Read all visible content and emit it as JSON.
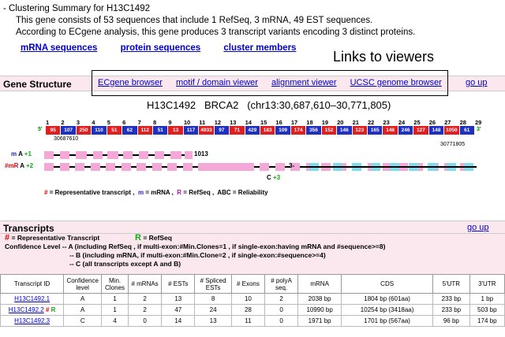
{
  "summary": {
    "title": "- Clustering Summary for H13C1492",
    "line1": "This gene consists of 53 sequences that include 1 RefSeq, 3 mRNA, 49 EST sequences.",
    "line2": "According to ECgene analysis, this gene produces 3 transcript variants encoding 3 distinct proteins."
  },
  "links": [
    "mRNA sequences",
    "protein sequences",
    "cluster members"
  ],
  "viewer_note": "Links to viewers",
  "gene_structure": {
    "section_title": "Gene Structure",
    "viewers": [
      "ECgene browser",
      "motif / domain viewer",
      "alignment viewer",
      "UCSC genome browser"
    ],
    "go_up": "go up",
    "gene_id": "H13C1492",
    "gene_symbol": "BRCA2",
    "location": "(chr13:30,687,610–30,771,805)",
    "prime5": "5'",
    "prime3": "3'",
    "coord_left": "30687610",
    "coord_right": "30771805",
    "exon_numbers": [
      "1",
      "2",
      "3",
      "4",
      "5",
      "6",
      "7",
      "8",
      "9",
      "10",
      "11",
      "12",
      "13",
      "14",
      "15",
      "16",
      "17",
      "18",
      "19",
      "20",
      "21",
      "22",
      "23",
      "24",
      "25",
      "26",
      "27",
      "28",
      "29"
    ],
    "exon_labels": [
      "95",
      "107",
      "250",
      "110",
      "51",
      "62",
      "112",
      "51",
      "13",
      "117",
      "4933",
      "97",
      "71",
      "429",
      "183",
      "109",
      "174",
      "356",
      "152",
      "146",
      "123",
      "165",
      "148",
      "246",
      "127",
      "148",
      "1050",
      "61"
    ],
    "tracks": [
      {
        "prefix": "m",
        "label": "A",
        "plus": "+1",
        "note": "1013"
      },
      {
        "prefix": "#mR",
        "label": "A",
        "plus": "+2",
        "note": ""
      },
      {
        "prefix": "",
        "label": "C",
        "plus": "+3",
        "note": "3-"
      }
    ],
    "legend": {
      "rep_mark": "#",
      "rep_text": "= Representative transcript ,",
      "m_mark": "m",
      "m_text": "= mRNA ,",
      "r_mark": "R",
      "r_text": "= RefSeq ,",
      "abc_text": "ABC = Reliability"
    }
  },
  "transcripts": {
    "section_title": "Transcripts",
    "go_up": "go up",
    "rep_mark": "#",
    "rep_text": "= Representative Transcript",
    "refseq_mark": "R",
    "refseq_text": "= RefSeq",
    "conf_a": "Confidence Level -- A (including RefSeq , if multi-exon:#Min.Clones=1 , if single-exon:having mRNA and #sequence>=8)",
    "conf_b": "-- B (including mRNA, if multi-exon:#Min.Clone=2 , if single-exon:#sequence>=4)",
    "conf_c": "-- C (all transcripts except A and B)",
    "columns": [
      "Transcript ID",
      "Confidence level",
      "Min. Clones",
      "# mRNAs",
      "# ESTs",
      "# Spliced ESTs",
      "# Exons",
      "# polyA seq.",
      "mRNA",
      "CDS",
      "5'UTR",
      "3'UTR"
    ],
    "rows": [
      {
        "id": "H13C1492.1",
        "marks": "",
        "conf": "A",
        "min": "1",
        "mrnas": "2",
        "ests": "13",
        "spliced": "8",
        "exons": "10",
        "polya": "2",
        "mrna": "2038 bp",
        "cds": "1804 bp (601aa)",
        "utr5": "233 bp",
        "utr3": "1 bp"
      },
      {
        "id": "H13C1492.2",
        "marks": "# R",
        "conf": "A",
        "min": "1",
        "mrnas": "2",
        "ests": "47",
        "spliced": "24",
        "exons": "28",
        "polya": "0",
        "mrna": "10990 bp",
        "cds": "10254 bp (3418aa)",
        "utr5": "233 bp",
        "utr3": "503 bp"
      },
      {
        "id": "H13C1492.3",
        "marks": "",
        "conf": "C",
        "min": "4",
        "mrnas": "0",
        "ests": "14",
        "spliced": "13",
        "exons": "11",
        "polya": "0",
        "mrna": "1971 bp",
        "cds": "1701 bp (567aa)",
        "utr5": "96 bp",
        "utr3": "174 bp"
      }
    ]
  },
  "colors": {
    "link": "#0000cc",
    "section_bg": "#fbe8ee",
    "exon_red": "#e02020",
    "exon_blue": "#2030c0",
    "box_pink": "#f4a8d8",
    "box_cyan": "#7fdcef"
  }
}
